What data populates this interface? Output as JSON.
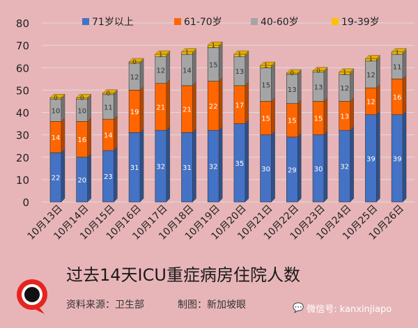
{
  "chart_data": {
    "type": "bar",
    "stacked": true,
    "title": "过去14天ICU重症病房住院人数",
    "categories": [
      "10月13日",
      "10月14日",
      "10月15日",
      "10月16日",
      "10月17日",
      "10月18日",
      "10月19日",
      "10月20日",
      "10月21日",
      "10月22日",
      "10月23日",
      "10月24日",
      "10月25日",
      "10月26日"
    ],
    "series": [
      {
        "name": "71岁以上",
        "color": "#4472c4",
        "values": [
          22,
          20,
          23,
          31,
          32,
          31,
          32,
          35,
          30,
          29,
          30,
          32,
          39,
          39
        ]
      },
      {
        "name": "61-70岁",
        "color": "#ff6600",
        "values": [
          14,
          16,
          14,
          19,
          21,
          21,
          22,
          17,
          15,
          15,
          15,
          13,
          12,
          16
        ]
      },
      {
        "name": "40-60岁",
        "color": "#a5a5a5",
        "values": [
          10,
          10,
          11,
          12,
          12,
          14,
          15,
          13,
          15,
          13,
          13,
          12,
          12,
          11
        ]
      },
      {
        "name": "19-39岁",
        "color": "#ffc000",
        "values": [
          0,
          0,
          0,
          0,
          1,
          1,
          1,
          1,
          1,
          0,
          0,
          1,
          1,
          1
        ]
      }
    ],
    "ylim": [
      0,
      80
    ],
    "yticks": [
      0,
      10,
      20,
      30,
      40,
      50,
      60,
      70,
      80
    ],
    "grid": true,
    "legend": "top"
  },
  "footer": {
    "source": "资料来源：卫生部",
    "credit": "制图：新加坡眼",
    "wechat": "微信号: kanxinjiapo"
  }
}
